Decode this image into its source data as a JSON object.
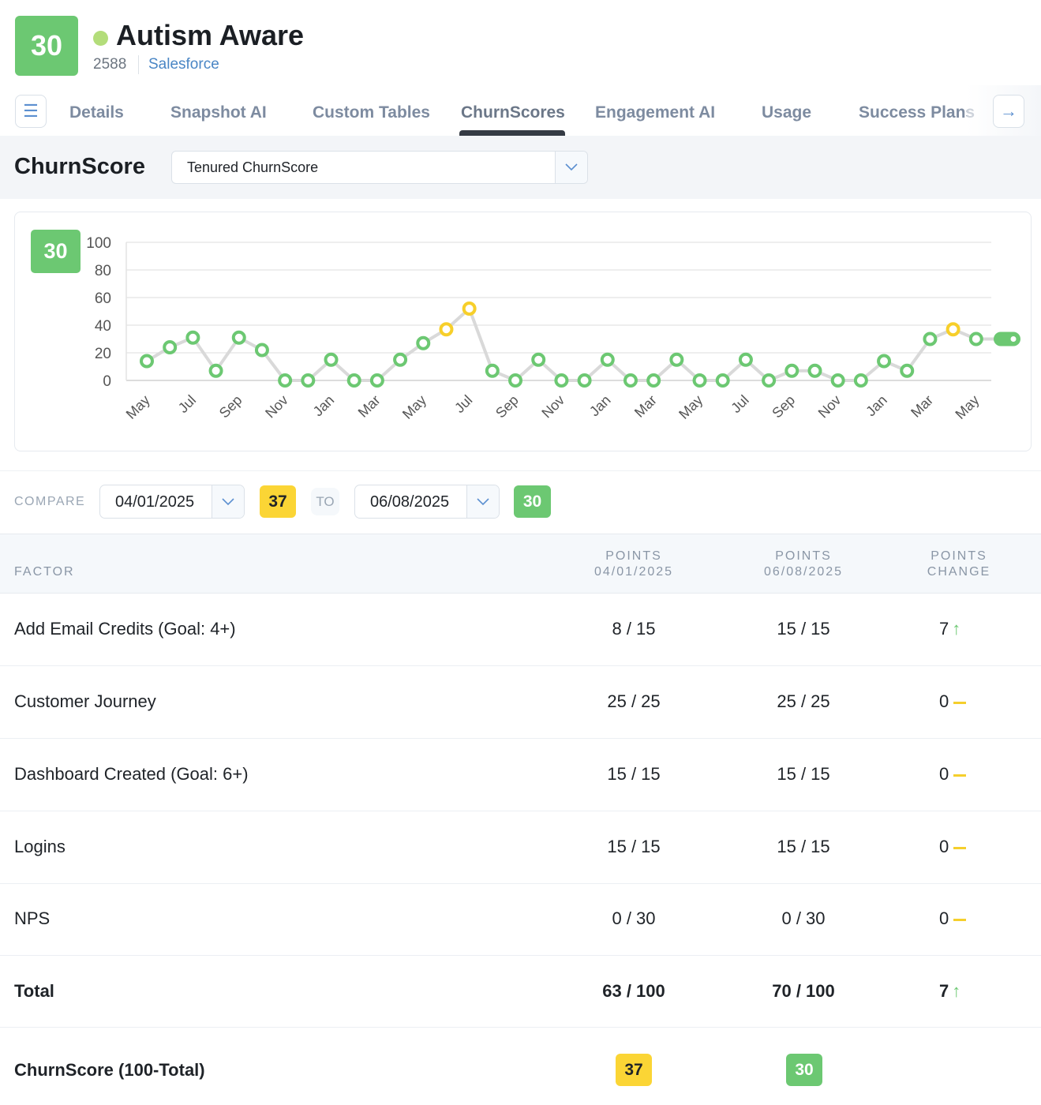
{
  "header": {
    "score": "30",
    "account_name": "Autism Aware",
    "account_id": "2588",
    "crm": "Salesforce",
    "status_color": "#b3dd7a"
  },
  "tabs": [
    {
      "label": "Details"
    },
    {
      "label": "Snapshot AI"
    },
    {
      "label": "Custom Tables"
    },
    {
      "label": "ChurnScores",
      "active": true
    },
    {
      "label": "Engagement AI"
    },
    {
      "label": "Usage"
    },
    {
      "label": "Success Plans"
    }
  ],
  "icons": {
    "menu": "hamburger-icon",
    "next": "arrow-right-icon",
    "dropdown": "chevron-down-icon",
    "up": "arrow-up-icon",
    "flat": "dash-icon"
  },
  "churnscore": {
    "title": "ChurnScore",
    "selected_model": "Tenured ChurnScore",
    "current_score": "30"
  },
  "chart_data": {
    "type": "line",
    "ylim": [
      0,
      100
    ],
    "yticks": [
      0,
      20,
      40,
      60,
      80,
      100
    ],
    "grid": true,
    "categories": [
      "May",
      "Jun",
      "Jul",
      "Aug",
      "Sep",
      "Oct",
      "Nov",
      "Dec",
      "Jan",
      "Feb",
      "Mar",
      "Apr",
      "May",
      "Jun",
      "Jul",
      "Aug",
      "Sep",
      "Oct",
      "Nov",
      "Dec",
      "Jan",
      "Feb",
      "Mar",
      "Apr",
      "May",
      "Jun",
      "Jul",
      "Aug",
      "Sep",
      "Oct",
      "Nov",
      "Dec",
      "Jan",
      "Feb",
      "Mar",
      "Apr",
      "May",
      "Jun"
    ],
    "xtick_labels": [
      "May",
      "Jul",
      "Sep",
      "Nov",
      "Jan",
      "Mar",
      "May",
      "Jul",
      "Sep",
      "Nov",
      "Jan",
      "Mar",
      "May",
      "Jul",
      "Sep",
      "Nov",
      "Jan",
      "Mar",
      "May"
    ],
    "values": [
      14,
      24,
      31,
      7,
      31,
      22,
      0,
      0,
      15,
      0,
      0,
      15,
      27,
      37,
      52,
      7,
      0,
      15,
      0,
      0,
      15,
      0,
      0,
      15,
      0,
      0,
      15,
      0,
      7,
      7,
      0,
      0,
      14,
      7,
      30,
      37,
      30,
      30
    ],
    "point_colors": {
      "low": "#6cc872",
      "high": "#f7cf2a"
    },
    "high_threshold": 35,
    "line_color": "#d9d9d9"
  },
  "compare": {
    "label": "COMPARE",
    "from_date": "04/01/2025",
    "from_score": "37",
    "to_label": "TO",
    "to_date": "06/08/2025",
    "to_score": "30"
  },
  "table": {
    "headers": {
      "factor": "FACTOR",
      "p1_a": "POINTS",
      "p1_b": "04/01/2025",
      "p2_a": "POINTS",
      "p2_b": "06/08/2025",
      "ch_a": "POINTS",
      "ch_b": "CHANGE"
    },
    "rows": [
      {
        "factor": "Add Email Credits (Goal: 4+)",
        "p1": "8 / 15",
        "p2": "15 / 15",
        "change": "7",
        "trend": "up"
      },
      {
        "factor": "Customer Journey",
        "p1": "25 / 25",
        "p2": "25 / 25",
        "change": "0",
        "trend": "flat"
      },
      {
        "factor": "Dashboard Created (Goal: 6+)",
        "p1": "15 / 15",
        "p2": "15 / 15",
        "change": "0",
        "trend": "flat"
      },
      {
        "factor": "Logins",
        "p1": "15 / 15",
        "p2": "15 / 15",
        "change": "0",
        "trend": "flat"
      },
      {
        "factor": "NPS",
        "p1": "0 / 30",
        "p2": "0 / 30",
        "change": "0",
        "trend": "flat"
      }
    ],
    "total": {
      "label": "Total",
      "p1": "63 / 100",
      "p2": "70 / 100",
      "change": "7",
      "trend": "up"
    },
    "churn": {
      "label": "ChurnScore (100-Total)",
      "p1": "37",
      "p2": "30"
    }
  }
}
